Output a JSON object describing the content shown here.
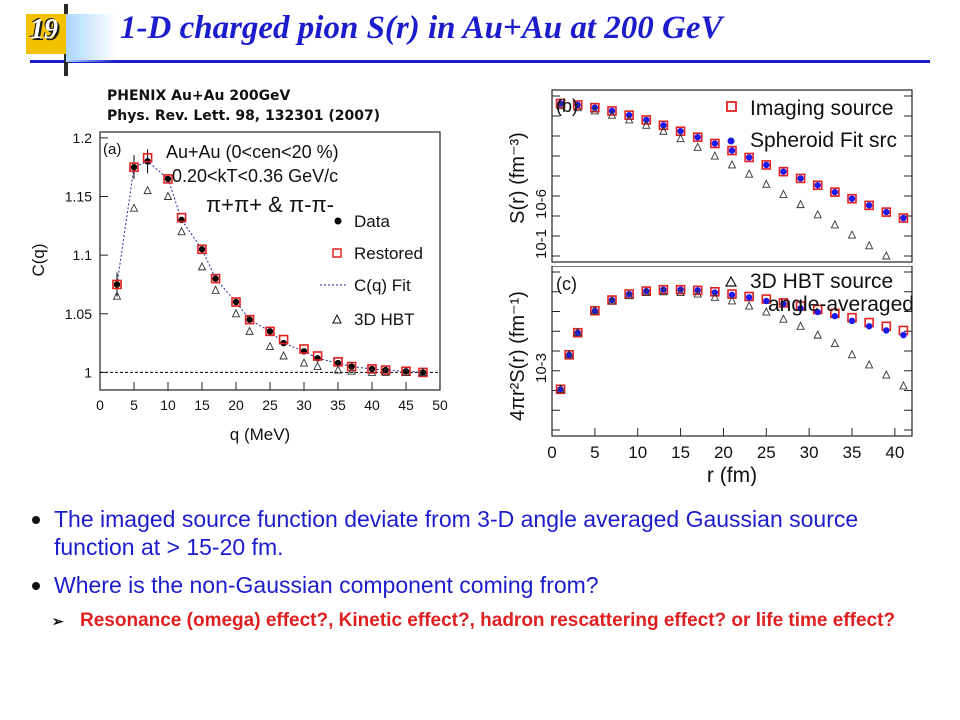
{
  "slide_number": "19",
  "title": "1-D charged pion S(r) in Au+Au at 200 GeV",
  "reference": {
    "line1": "PHENIX Au+Au 200GeV",
    "line2": "Phys. Rev. Lett. 98, 132301 (2007)"
  },
  "colors": {
    "title": "#1c1ccc",
    "restored": "#e02020",
    "fit_blue": "#1a1aee",
    "sub_bullet": "#e02020"
  },
  "bullets": [
    "The imaged source function deviate from 3-D angle averaged Gaussian source function at > 15-20 fm.",
    "Where is the non-Gaussian component coming from?"
  ],
  "sub_bullet": "Resonance (omega) effect?, Kinetic effect?, hadron rescattering effect? or life time effect?",
  "chart_data": [
    {
      "panel": "(a)",
      "type": "scatter",
      "xlabel": "q (MeV)",
      "ylabel": "C(q)",
      "xlim": [
        0,
        50
      ],
      "ylim": [
        0.985,
        1.205
      ],
      "x_ticks": [
        "0",
        "5",
        "10",
        "15",
        "20",
        "25",
        "30",
        "35",
        "40",
        "45",
        "50"
      ],
      "y_ticks": [
        "1",
        "1.05",
        "1.1",
        "1.15",
        "1.2"
      ],
      "annotation_line1": "Au+Au (0<cen<20 %)",
      "annotation_line2": "0.20<kT<0.36 GeV/c",
      "annotation_line3": "π+π+ & π-π-",
      "legend": {
        "data": "Data",
        "restored": "Restored",
        "fit": "C(q) Fit",
        "hbt": "3D HBT"
      },
      "x": [
        2.5,
        5,
        7,
        10,
        12,
        15,
        17,
        20,
        22,
        25,
        27,
        30,
        32,
        35,
        37,
        40,
        42,
        45,
        47.5
      ],
      "series": [
        {
          "name": "Data",
          "values": [
            1.075,
            1.175,
            1.18,
            1.165,
            1.13,
            1.105,
            1.08,
            1.06,
            1.045,
            1.035,
            1.025,
            1.018,
            1.012,
            1.008,
            1.005,
            1.003,
            1.002,
            1.001,
            1.0
          ]
        },
        {
          "name": "Restored",
          "values": [
            1.075,
            1.175,
            1.183,
            1.165,
            1.132,
            1.105,
            1.08,
            1.06,
            1.045,
            1.035,
            1.028,
            1.02,
            1.014,
            1.009,
            1.005,
            1.003,
            1.002,
            1.001,
            1.0
          ]
        },
        {
          "name": "3D HBT",
          "values": [
            1.065,
            1.14,
            1.155,
            1.15,
            1.12,
            1.09,
            1.07,
            1.05,
            1.035,
            1.022,
            1.014,
            1.008,
            1.005,
            1.002,
            1.001,
            1.0,
            1.0,
            1.0,
            1.0
          ]
        }
      ]
    },
    {
      "panel": "(b)",
      "type": "scatter",
      "ylabel": "S(r) (fm⁻³)",
      "xlim": [
        0,
        42
      ],
      "legend": {
        "imaging": "Imaging source",
        "spheroid": "Spheroid Fit src"
      },
      "y_ticks": [
        "10-6",
        "10-1"
      ],
      "x": [
        1,
        3,
        5,
        7,
        9,
        11,
        13,
        15,
        17,
        19,
        21,
        23,
        25,
        27,
        29,
        31,
        33,
        35,
        37,
        39,
        41
      ],
      "series": [
        {
          "name": "Imaging source",
          "values": [
            0.002,
            0.0018,
            0.0015,
            0.0012,
            0.0009,
            0.00065,
            0.00045,
            0.0003,
            0.0002,
            0.00013,
            8e-05,
            5e-05,
            3e-05,
            1.9e-05,
            1.2e-05,
            7.5e-06,
            4.7e-06,
            3e-06,
            1.9e-06,
            1.2e-06,
            8e-07
          ]
        },
        {
          "name": "Spheroid Fit src",
          "values": [
            0.002,
            0.0018,
            0.0015,
            0.0012,
            0.0009,
            0.00065,
            0.00045,
            0.0003,
            0.0002,
            0.00013,
            8e-05,
            5e-05,
            3e-05,
            1.9e-05,
            1.2e-05,
            7.5e-06,
            4.7e-06,
            3e-06,
            1.9e-06,
            1.2e-06,
            8e-07
          ]
        },
        {
          "name": "3D HBT source angle-averaged",
          "values": [
            0.0017,
            0.0015,
            0.0012,
            0.0009,
            0.00065,
            0.00045,
            0.0003,
            0.00018,
            0.0001,
            5.5e-05,
            3e-05,
            1.6e-05,
            8e-06,
            4e-06,
            2e-06,
            1e-06,
            5e-07,
            2.5e-07,
            1.2e-07,
            6e-08,
            3e-08
          ]
        }
      ]
    },
    {
      "panel": "(c)",
      "type": "scatter",
      "xlabel": "r (fm)",
      "ylabel": "4πr²S(r) (fm⁻¹)",
      "xlim": [
        0,
        42
      ],
      "x_ticks": [
        "0",
        "5",
        "10",
        "15",
        "20",
        "25",
        "30",
        "35",
        "40"
      ],
      "y_ticks": [
        "10-3"
      ],
      "legend": {
        "hbt_line1": "3D HBT source",
        "hbt_line2": "angle-averaged"
      },
      "x": [
        1,
        2,
        3,
        5,
        7,
        9,
        11,
        13,
        15,
        17,
        19,
        21,
        23,
        25,
        27,
        29,
        31,
        33,
        35,
        37,
        39,
        41
      ],
      "series": [
        {
          "name": "Imaging source",
          "values": [
            0.0003,
            0.0008,
            0.0015,
            0.0028,
            0.0038,
            0.0045,
            0.0049,
            0.0051,
            0.0051,
            0.005,
            0.0048,
            0.0045,
            0.0042,
            0.0039,
            0.0035,
            0.0032,
            0.0029,
            0.0026,
            0.0023,
            0.002,
            0.0018,
            0.0016
          ]
        },
        {
          "name": "Spheroid Fit src",
          "values": [
            0.0003,
            0.0008,
            0.0015,
            0.0028,
            0.0038,
            0.0045,
            0.0049,
            0.0051,
            0.0051,
            0.005,
            0.0047,
            0.0044,
            0.0041,
            0.0037,
            0.0034,
            0.003,
            0.0027,
            0.0024,
            0.0021,
            0.0018,
            0.0016,
            0.0014
          ]
        },
        {
          "name": "3D HBT source angle-averaged",
          "values": [
            0.0003,
            0.0008,
            0.0015,
            0.0028,
            0.0037,
            0.0043,
            0.0047,
            0.0048,
            0.0047,
            0.0045,
            0.0041,
            0.0037,
            0.0032,
            0.0027,
            0.0022,
            0.0018,
            0.0014,
            0.0011,
            0.0008,
            0.0006,
            0.00045,
            0.00033
          ]
        }
      ]
    }
  ]
}
